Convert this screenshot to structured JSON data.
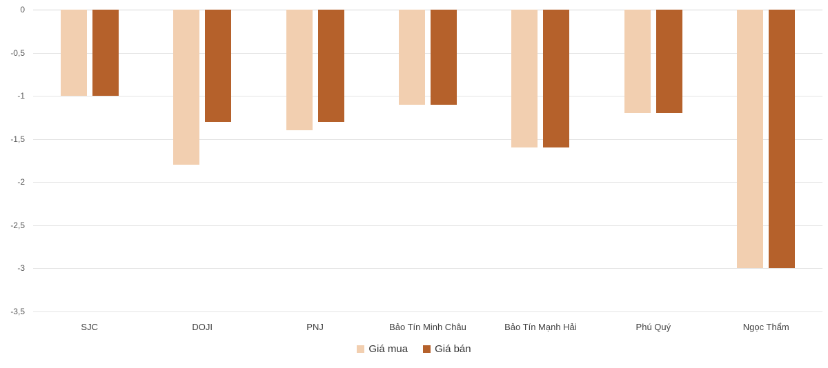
{
  "chart_data": {
    "type": "bar",
    "orientation": "vertical",
    "categories": [
      "SJC",
      "DOJI",
      "PNJ",
      "Bảo Tín Minh Châu",
      "Bảo Tín Mạnh Hải",
      "Phú Quý",
      "Ngọc Thẩm"
    ],
    "series": [
      {
        "name": "Giá mua",
        "color": "#F2CFB0",
        "values": [
          -1,
          -1.8,
          -1.4,
          -1.1,
          -1.6,
          -1.2,
          -3
        ]
      },
      {
        "name": "Giá bán",
        "color": "#B5612B",
        "values": [
          -1,
          -1.3,
          -1.3,
          -1.1,
          -1.6,
          -1.2,
          -3
        ]
      }
    ],
    "ylim": [
      -3.5,
      0
    ],
    "yticks": [
      0,
      -0.5,
      -1,
      -1.5,
      -2,
      -2.5,
      -3,
      -3.5
    ],
    "ytick_labels": [
      "0",
      "-0,5",
      "-1",
      "-1,5",
      "-2",
      "-2,5",
      "-3",
      "-3,5"
    ],
    "grid": true,
    "gridline_color": "#E4E4E4",
    "zero_line_color": "#D4D4D4",
    "legend_position": "bottom",
    "legend": [
      "Giá mua",
      "Giá bán"
    ],
    "background": "#FFFFFF"
  }
}
